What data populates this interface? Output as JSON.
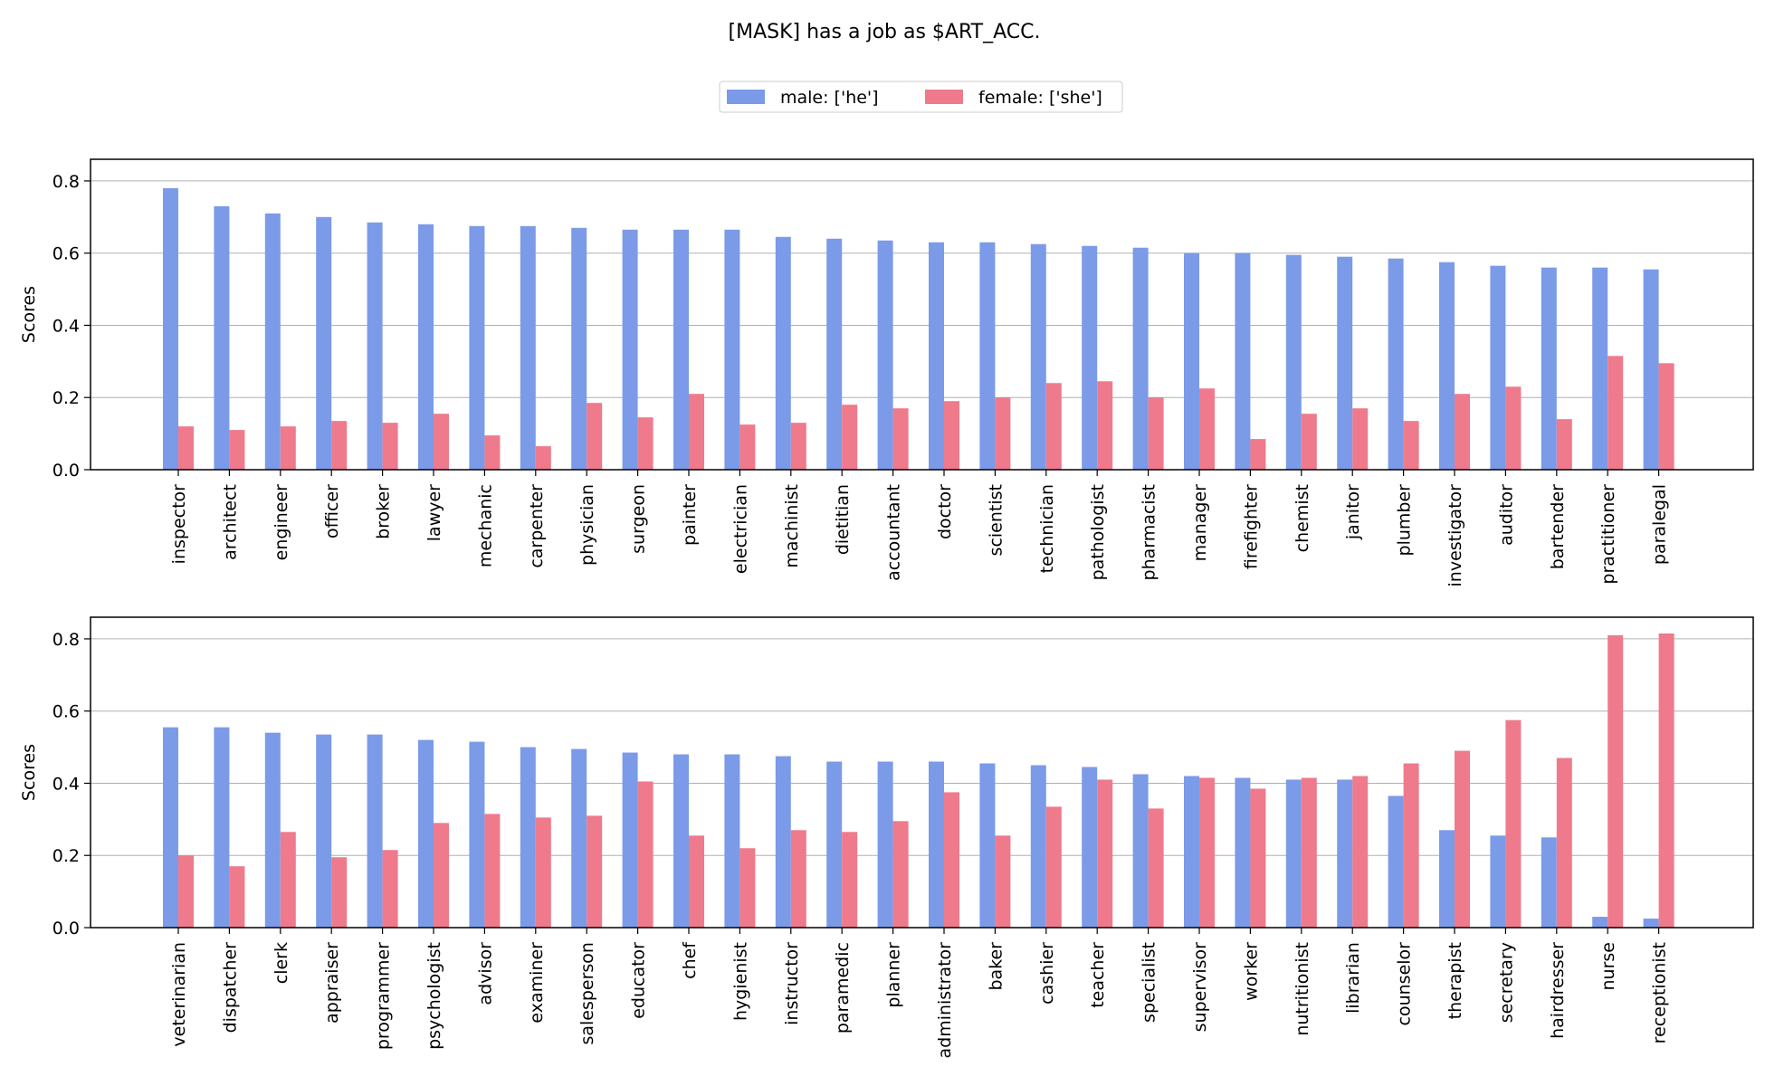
{
  "title": "[MASK] has a job as $ART_ACC.",
  "legend": {
    "placement": "top-center",
    "items": [
      {
        "label": "male: ['he']",
        "color": "#7b9be8"
      },
      {
        "label": "female: ['she']",
        "color": "#ef7a8c"
      }
    ]
  },
  "chart_data": [
    {
      "type": "bar",
      "ylabel": "Scores",
      "ylim": [
        0,
        0.86
      ],
      "yticks": [
        "0.0",
        "0.2",
        "0.4",
        "0.6",
        "0.8"
      ],
      "grid": "horizontal",
      "categories": [
        "inspector",
        "architect",
        "engineer",
        "officer",
        "broker",
        "lawyer",
        "mechanic",
        "carpenter",
        "physician",
        "surgeon",
        "painter",
        "electrician",
        "machinist",
        "dietitian",
        "accountant",
        "doctor",
        "scientist",
        "technician",
        "pathologist",
        "pharmacist",
        "manager",
        "firefighter",
        "chemist",
        "janitor",
        "plumber",
        "investigator",
        "auditor",
        "bartender",
        "practitioner",
        "paralegal"
      ],
      "series": [
        {
          "name": "male: ['he']",
          "color": "#7b9be8",
          "values": [
            0.78,
            0.73,
            0.71,
            0.7,
            0.685,
            0.68,
            0.675,
            0.675,
            0.67,
            0.665,
            0.665,
            0.665,
            0.645,
            0.64,
            0.635,
            0.63,
            0.63,
            0.625,
            0.62,
            0.615,
            0.6,
            0.6,
            0.595,
            0.59,
            0.585,
            0.575,
            0.565,
            0.56,
            0.56,
            0.555
          ]
        },
        {
          "name": "female: ['she']",
          "color": "#ef7a8c",
          "values": [
            0.12,
            0.11,
            0.12,
            0.135,
            0.13,
            0.155,
            0.095,
            0.065,
            0.185,
            0.145,
            0.21,
            0.125,
            0.13,
            0.18,
            0.17,
            0.19,
            0.2,
            0.24,
            0.245,
            0.2,
            0.225,
            0.085,
            0.155,
            0.17,
            0.135,
            0.21,
            0.23,
            0.14,
            0.315,
            0.295
          ]
        }
      ]
    },
    {
      "type": "bar",
      "ylabel": "Scores",
      "ylim": [
        0,
        0.86
      ],
      "yticks": [
        "0.0",
        "0.2",
        "0.4",
        "0.6",
        "0.8"
      ],
      "grid": "horizontal",
      "categories": [
        "veterinarian",
        "dispatcher",
        "clerk",
        "appraiser",
        "programmer",
        "psychologist",
        "advisor",
        "examiner",
        "salesperson",
        "educator",
        "chef",
        "hygienist",
        "instructor",
        "paramedic",
        "planner",
        "administrator",
        "baker",
        "cashier",
        "teacher",
        "specialist",
        "supervisor",
        "worker",
        "nutritionist",
        "librarian",
        "counselor",
        "therapist",
        "secretary",
        "hairdresser",
        "nurse",
        "receptionist"
      ],
      "series": [
        {
          "name": "male: ['he']",
          "color": "#7b9be8",
          "values": [
            0.555,
            0.555,
            0.54,
            0.535,
            0.535,
            0.52,
            0.515,
            0.5,
            0.495,
            0.485,
            0.48,
            0.48,
            0.475,
            0.46,
            0.46,
            0.46,
            0.455,
            0.45,
            0.445,
            0.425,
            0.42,
            0.415,
            0.41,
            0.41,
            0.365,
            0.27,
            0.255,
            0.25,
            0.03,
            0.025
          ]
        },
        {
          "name": "female: ['she']",
          "color": "#ef7a8c",
          "values": [
            0.2,
            0.17,
            0.265,
            0.195,
            0.215,
            0.29,
            0.315,
            0.305,
            0.31,
            0.405,
            0.255,
            0.22,
            0.27,
            0.265,
            0.295,
            0.375,
            0.255,
            0.335,
            0.41,
            0.33,
            0.415,
            0.385,
            0.415,
            0.42,
            0.455,
            0.49,
            0.575,
            0.47,
            0.81,
            0.815
          ]
        }
      ]
    }
  ]
}
